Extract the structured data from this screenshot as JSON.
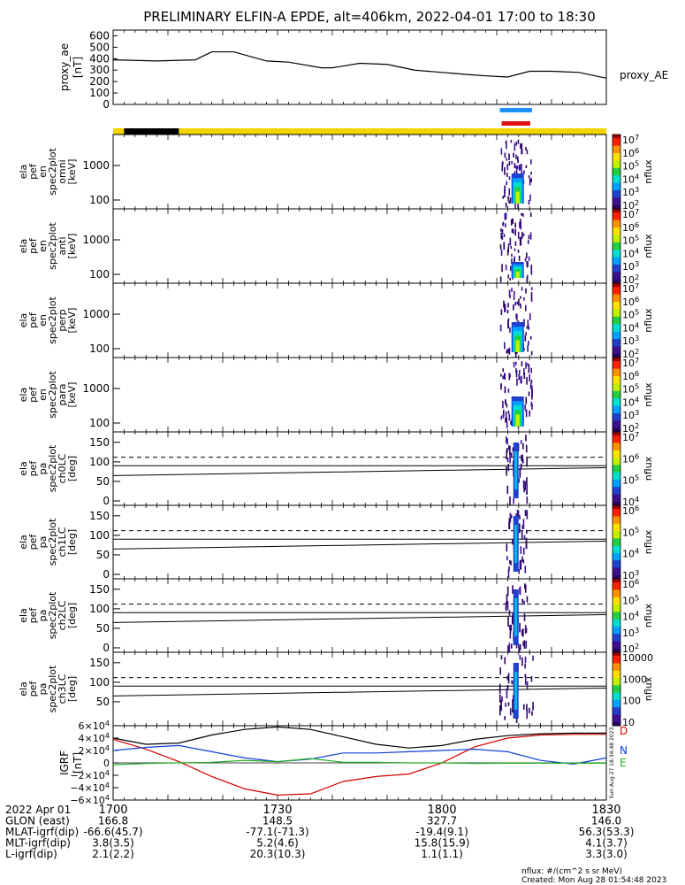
{
  "title": "PRELIMINARY ELFIN-A EPDE, alt=406km, 2022-04-01 17:00 to 18:30",
  "colors": {
    "ae_line": "#000000",
    "sunlit_bar": "#f5d400",
    "shadow_bar": "#000000",
    "science_zone_blue": "#1e90ff",
    "science_zone_red": "#e01010",
    "igrf_D": "#d40000",
    "igrf_N": "#1040d8",
    "igrf_E": "#20b020",
    "igrf_total": "#000000"
  },
  "panels": {
    "ae": {
      "ylabel": "proxy_ae\n[nT]",
      "yticks": [
        "600",
        "500",
        "400",
        "300",
        "200",
        "100",
        "0"
      ],
      "legend": "proxy_AE"
    },
    "spec_energy": [
      {
        "ylabel_lines": [
          "ela",
          "pef",
          "en",
          "spec2plot",
          "omni",
          "[keV]"
        ],
        "yticks": [
          "1000",
          "100"
        ],
        "cbar_ticks": [
          "10^7",
          "10^6",
          "10^5",
          "10^4",
          "10^3",
          "10^2"
        ],
        "cbar_label": "nflux"
      },
      {
        "ylabel_lines": [
          "ela",
          "pef",
          "en",
          "spec2plot",
          "anti",
          "[keV]"
        ],
        "yticks": [
          "1000",
          "100"
        ],
        "cbar_ticks": [
          "10^7",
          "10^6",
          "10^5",
          "10^4",
          "10^3",
          "10^2"
        ],
        "cbar_label": "nflux"
      },
      {
        "ylabel_lines": [
          "ela",
          "pef",
          "en",
          "spec2plot",
          "perp",
          "[keV]"
        ],
        "yticks": [
          "1000",
          "100"
        ],
        "cbar_ticks": [
          "10^7",
          "10^6",
          "10^5",
          "10^4",
          "10^3",
          "10^2"
        ],
        "cbar_label": "nflux"
      },
      {
        "ylabel_lines": [
          "ela",
          "pef",
          "en",
          "spec2plot",
          "para",
          "[keV]"
        ],
        "yticks": [
          "1000",
          "100"
        ],
        "cbar_ticks": [
          "10^7",
          "10^6",
          "10^5",
          "10^4",
          "10^3",
          "10^2"
        ],
        "cbar_label": "nflux"
      }
    ],
    "spec_pa": [
      {
        "ylabel_lines": [
          "ela",
          "pef",
          "pa",
          "spec2plot",
          "ch0LC",
          "[deg]"
        ],
        "yticks": [
          "150",
          "100",
          "50",
          "0"
        ],
        "cbar_ticks": [
          "10^7",
          "10^6",
          "10^5",
          "10^4"
        ],
        "cbar_label": "nflux"
      },
      {
        "ylabel_lines": [
          "ela",
          "pef",
          "pa",
          "spec2plot",
          "ch1LC",
          "[deg]"
        ],
        "yticks": [
          "150",
          "100",
          "50",
          "0"
        ],
        "cbar_ticks": [
          "10^6",
          "10^5",
          "10^4",
          "10^3"
        ],
        "cbar_label": "nflux"
      },
      {
        "ylabel_lines": [
          "ela",
          "pef",
          "pa",
          "spec2plot",
          "ch2LC",
          "[deg]"
        ],
        "yticks": [
          "150",
          "100",
          "50",
          "0"
        ],
        "cbar_ticks": [
          "10^6",
          "10^5",
          "10^4",
          "10^3",
          "10^2"
        ],
        "cbar_label": "nflux"
      },
      {
        "ylabel_lines": [
          "ela",
          "pef",
          "pa",
          "spec2plot",
          "ch3LC",
          "[deg]"
        ],
        "yticks": [
          "150",
          "100",
          "50"
        ],
        "cbar_ticks": [
          "10000",
          "1000",
          "100",
          "10"
        ],
        "cbar_label": "nflux"
      }
    ],
    "igrf": {
      "ylabel": "IGRF\n[nT]",
      "yticks": [
        "6×10^4",
        "4×10^4",
        "2×10^4",
        "0",
        "−2×10^4",
        "−4×10^4",
        "−6×10^4"
      ],
      "legend": [
        "D",
        "N",
        "E"
      ]
    }
  },
  "time_axis": {
    "ticks": [
      "1700",
      "1730",
      "1800",
      "1830"
    ],
    "rows": [
      {
        "label": "2022 Apr 01",
        "values": [
          "",
          "",
          "",
          ""
        ]
      },
      {
        "label": "GLON (east)",
        "values": [
          "166.8",
          "148.5",
          "327.7",
          "146.0"
        ]
      },
      {
        "label": "MLAT-igrf(dip)",
        "values": [
          "-66.6(45.7)",
          "-77.1(-71.3)",
          "-19.4(9.1)",
          "56.3(53.3)"
        ]
      },
      {
        "label": "MLT-igrf(dip)",
        "values": [
          "3.8(3.5)",
          "5.2(4.6)",
          "15.8(15.9)",
          "4.1(3.7)"
        ]
      },
      {
        "label": "L-igrf(dip)",
        "values": [
          "2.1(2.2)",
          "20.3(10.3)",
          "1.1(1.1)",
          "3.3(3.0)"
        ]
      }
    ]
  },
  "footer": {
    "units": "nflux: #/(cm^2 s sr MeV)",
    "created": "Created: Mon Aug 28 01:54:48 2023",
    "stamp_side": "Sun Aug 27 18:34:48 2023"
  },
  "chart_data": {
    "type": "line",
    "title": "PRELIMINARY ELFIN-A EPDE, alt=406km, 2022-04-01 17:00 to 18:30",
    "x_units": "minutes after 17:00 UT",
    "xlim": [
      0,
      90
    ],
    "series_ae": {
      "name": "proxy_AE",
      "ylim": [
        0,
        650
      ],
      "x": [
        0,
        8,
        15,
        18,
        22,
        28,
        32,
        38,
        40,
        45,
        50,
        55,
        60,
        65,
        68,
        72,
        76,
        80,
        85,
        90
      ],
      "y": [
        390,
        380,
        390,
        460,
        460,
        380,
        370,
        320,
        320,
        360,
        350,
        300,
        280,
        260,
        250,
        240,
        290,
        290,
        280,
        230
      ]
    },
    "sunlight": [
      {
        "state": "sunlit",
        "x": [
          0,
          2
        ]
      },
      {
        "state": "eclipse",
        "x": [
          2,
          12
        ]
      },
      {
        "state": "sunlit",
        "x": [
          12,
          90
        ]
      }
    ],
    "science_zone_min": [
      72.5,
      74.5
    ],
    "energy_ylim_keV": [
      60,
      7000
    ],
    "pa_ylim_deg": [
      0,
      180
    ],
    "loss_cone_deg": {
      "x": [
        0,
        90
      ],
      "solid_lower": [
        65,
        85
      ],
      "solid_mid": [
        90,
        90
      ],
      "dashed": [
        112,
        112
      ]
    },
    "igrf_ylim": [
      -60000,
      60000
    ],
    "series_igrf": [
      {
        "name": "D",
        "x": [
          0,
          6,
          12,
          18,
          24,
          30,
          36,
          42,
          48,
          54,
          60,
          66,
          72,
          78,
          84,
          90
        ],
        "y": [
          38000,
          22000,
          2000,
          -22000,
          -42000,
          -52000,
          -50000,
          -30000,
          -22000,
          -18000,
          0,
          26000,
          40000,
          45000,
          46000,
          46000
        ]
      },
      {
        "name": "N",
        "x": [
          0,
          6,
          12,
          18,
          24,
          30,
          36,
          42,
          48,
          54,
          60,
          66,
          72,
          78,
          84,
          90
        ],
        "y": [
          20000,
          25000,
          28000,
          18000,
          8000,
          2000,
          6000,
          16000,
          16000,
          18000,
          20000,
          22000,
          18000,
          4000,
          -2000,
          8000
        ]
      },
      {
        "name": "E",
        "x": [
          0,
          6,
          12,
          18,
          24,
          30,
          36,
          42,
          48,
          54,
          60,
          66,
          72,
          78,
          84,
          90
        ],
        "y": [
          -3000,
          -1000,
          0,
          1000,
          4000,
          2000,
          7000,
          1000,
          1000,
          0,
          0,
          -1000,
          -500,
          -500,
          -500,
          -500
        ]
      },
      {
        "name": "total",
        "x": [
          0,
          6,
          12,
          18,
          24,
          30,
          36,
          42,
          48,
          54,
          60,
          66,
          72,
          78,
          84,
          90
        ],
        "y": [
          40000,
          30000,
          32000,
          45000,
          54000,
          58000,
          54000,
          42000,
          30000,
          24000,
          28000,
          38000,
          44000,
          47000,
          48000,
          48000
        ]
      }
    ]
  }
}
